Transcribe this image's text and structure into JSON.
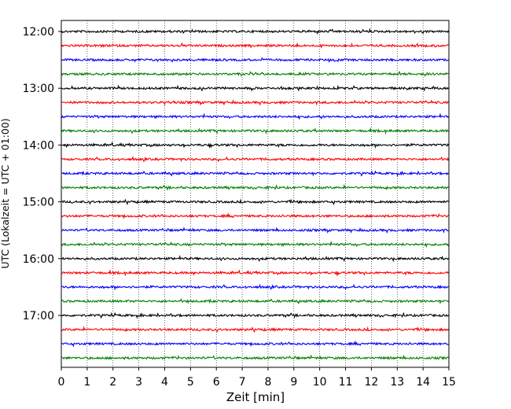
{
  "chart_data": {
    "type": "line",
    "title": "",
    "xlabel": "Zeit  [min]",
    "ylabel": "UTC (Lokalzeit = UTC + 01:00)",
    "xlim": [
      0,
      15
    ],
    "x_ticks": [
      "0",
      "1",
      "2",
      "3",
      "4",
      "5",
      "6",
      "7",
      "8",
      "9",
      "10",
      "11",
      "12",
      "13",
      "14",
      "15"
    ],
    "y_ticks": [
      "12:00",
      "13:00",
      "14:00",
      "15:00",
      "16:00",
      "17:00"
    ],
    "trace_start_times": [
      "12:00",
      "12:15",
      "12:30",
      "12:45",
      "13:00",
      "13:15",
      "13:30",
      "13:45",
      "14:00",
      "14:15",
      "14:30",
      "14:45",
      "15:00",
      "15:15",
      "15:30",
      "15:45",
      "16:00",
      "16:15",
      "16:30",
      "16:45",
      "17:00",
      "17:15",
      "17:30",
      "17:45"
    ],
    "trace_minutes": 15,
    "colors": [
      "#000000",
      "#ff0000",
      "#0000ff",
      "#008000"
    ],
    "grid": "vertical dotted at each minute",
    "legend": "none"
  }
}
